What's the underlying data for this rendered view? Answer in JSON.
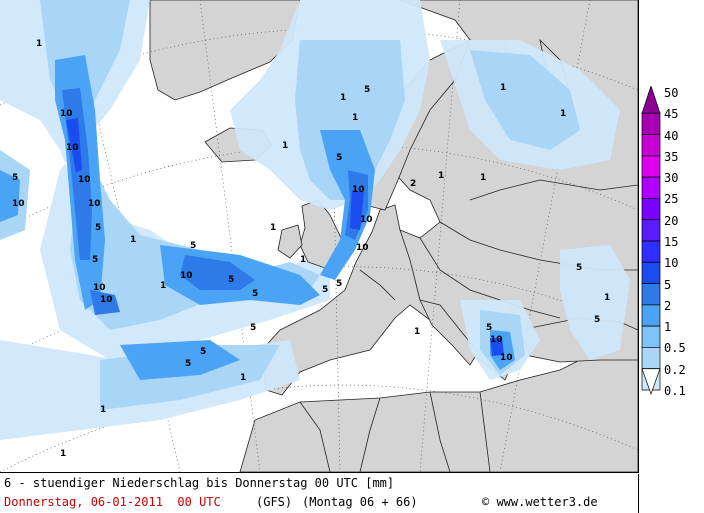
{
  "legend": {
    "levels": [
      "50",
      "45",
      "40",
      "35",
      "30",
      "25",
      "20",
      "15",
      "10",
      "5",
      "2",
      "1",
      "0.5",
      "0.2",
      "0.1"
    ],
    "colors": [
      "#8c0096",
      "#a700b2",
      "#c700d4",
      "#dd00ee",
      "#b000ff",
      "#7a00ff",
      "#5a1cff",
      "#2e2eff",
      "#1a4cf0",
      "#2d7ae8",
      "#4aa3f5",
      "#7fc2f7",
      "#a9d6f7",
      "#cfe8fb",
      "#ffffff"
    ]
  },
  "map_labels": {
    "one": "1",
    "two": "2",
    "five": "5",
    "ten": "10"
  },
  "footer": {
    "title": "6 - stuendiger Niederschlag bis Donnerstag 00 UTC [mm]",
    "date": "Donnerstag, 06-01-2011  00 UTC",
    "model": "(GFS)",
    "run": "(Montag 06 + 66)",
    "credit": "© www.wetter3.de"
  },
  "colors": {
    "land": "#d4d4d4",
    "sea": "#ffffff",
    "precip_light": "#cfe8fb",
    "precip_mid": "#a9d6f7",
    "precip_heavy": "#4aa3f5",
    "precip_strong": "#2d7ae8",
    "precip_intense": "#1a4cf0",
    "footer_date": "#cc0000"
  }
}
